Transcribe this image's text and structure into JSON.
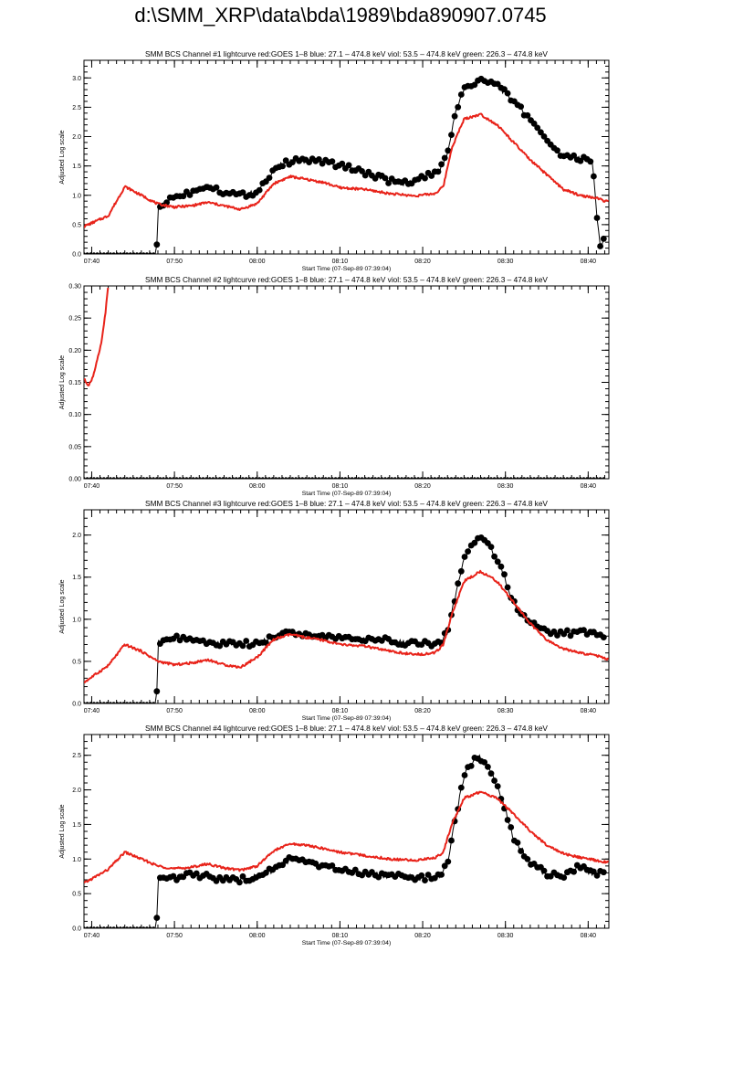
{
  "page": {
    "title": "d:\\SMM_XRP\\data\\bda\\1989\\bda890907.0745"
  },
  "colors": {
    "goes": "#e8231a",
    "bcs": "#000000",
    "axis": "#000000"
  },
  "chart_data": [
    {
      "type": "scatter",
      "title": "SMM BCS Channel #1 lightcurve  red:GOES 1–8  blue: 27.1 – 474.8 keV  viol: 53.5 – 474.8 keV  green: 226.3 – 474.8 keV",
      "xlabel": "Start Time (07-Sep-89 07:39:04)",
      "ylabel": "Adjusted Log scale",
      "xlim": [
        "07:39:04",
        "08:42:30"
      ],
      "ylim": [
        0,
        3.3
      ],
      "x_ticks": [
        "07:40",
        "07:50",
        "08:00",
        "08:10",
        "08:20",
        "08:30",
        "08:40"
      ],
      "y_ticks": [
        "0.0",
        "0.5",
        "1.0",
        "1.5",
        "2.0",
        "2.5",
        "3.0"
      ],
      "series": [
        {
          "name": "GOES 1–8",
          "style": "line",
          "x": [
            "07:39:04",
            "07:42:00",
            "07:44:00",
            "07:46:00",
            "07:48:00",
            "07:50:00",
            "07:52:00",
            "07:54:00",
            "07:56:00",
            "07:58:00",
            "08:00:00",
            "08:02:00",
            "08:04:00",
            "08:06:00",
            "08:08:00",
            "08:10:00",
            "08:13:00",
            "08:16:00",
            "08:19:00",
            "08:21:30",
            "08:22:30",
            "08:23:30",
            "08:25:00",
            "08:27:00",
            "08:29:00",
            "08:31:00",
            "08:33:00",
            "08:35:00",
            "08:37:00",
            "08:39:00",
            "08:41:00",
            "08:42:30"
          ],
          "y": [
            0.47,
            0.65,
            1.15,
            1.0,
            0.85,
            0.8,
            0.82,
            0.88,
            0.82,
            0.76,
            0.86,
            1.2,
            1.32,
            1.27,
            1.22,
            1.13,
            1.1,
            1.03,
            0.99,
            1.03,
            1.15,
            1.8,
            2.3,
            2.38,
            2.2,
            1.9,
            1.6,
            1.35,
            1.1,
            1.0,
            0.95,
            0.88
          ]
        },
        {
          "name": "BCS",
          "style": "points",
          "x": [
            "07:39:04",
            "07:47:50",
            "07:48:00",
            "07:50:00",
            "07:52:00",
            "07:54:00",
            "07:56:00",
            "07:58:00",
            "08:00:00",
            "08:02:00",
            "08:04:00",
            "08:06:00",
            "08:08:00",
            "08:10:00",
            "08:12:00",
            "08:14:00",
            "08:16:00",
            "08:18:00",
            "08:20:00",
            "08:22:00",
            "08:23:00",
            "08:24:00",
            "08:25:00",
            "08:27:00",
            "08:29:00",
            "08:31:00",
            "08:33:00",
            "08:35:00",
            "08:37:00",
            "08:39:00",
            "08:40:30",
            "08:41:00",
            "08:41:30",
            "08:42:00"
          ],
          "y": [
            0.0,
            0.0,
            0.8,
            0.98,
            1.05,
            1.18,
            1.05,
            1.0,
            1.05,
            1.45,
            1.58,
            1.6,
            1.58,
            1.5,
            1.45,
            1.33,
            1.25,
            1.2,
            1.3,
            1.4,
            1.7,
            2.45,
            2.8,
            2.97,
            2.88,
            2.6,
            2.3,
            1.95,
            1.65,
            1.62,
            1.6,
            0.7,
            0.1,
            0.3
          ]
        }
      ]
    },
    {
      "type": "scatter",
      "title": "SMM BCS Channel #2 lightcurve  red:GOES 1–8  blue: 27.1 – 474.8 keV  viol: 53.5 – 474.8 keV  green: 226.3 – 474.8 keV",
      "xlabel": "Start Time (07-Sep-89 07:39:04)",
      "ylabel": "Adjusted Log scale",
      "xlim": [
        "07:39:04",
        "08:42:30"
      ],
      "ylim": [
        0,
        0.3
      ],
      "x_ticks": [
        "07:40",
        "07:50",
        "08:00",
        "08:10",
        "08:20",
        "08:30",
        "08:40"
      ],
      "y_ticks": [
        "0.00",
        "0.05",
        "0.10",
        "0.15",
        "0.20",
        "0.25",
        "0.30"
      ],
      "series": [
        {
          "name": "GOES 1–8",
          "style": "line",
          "x": [
            "07:39:04",
            "07:39:40",
            "07:40:10",
            "07:40:40",
            "07:41:00",
            "07:41:20",
            "07:41:40",
            "07:42:00"
          ],
          "y": [
            0.155,
            0.145,
            0.16,
            0.185,
            0.2,
            0.225,
            0.26,
            0.3
          ]
        },
        {
          "name": "BCS",
          "style": "points",
          "x": [
            "07:39:04",
            "08:42:00"
          ],
          "y": [
            0.0,
            0.0
          ]
        }
      ]
    },
    {
      "type": "scatter",
      "title": "SMM BCS Channel #3 lightcurve  red:GOES 1–8  blue: 27.1 – 474.8 keV  viol: 53.5 – 474.8 keV  green: 226.3 – 474.8 keV",
      "xlabel": "Start Time (07-Sep-89 07:39:04)",
      "ylabel": "Adjusted Log scale",
      "xlim": [
        "07:39:04",
        "08:42:30"
      ],
      "ylim": [
        0,
        2.3
      ],
      "x_ticks": [
        "07:40",
        "07:50",
        "08:00",
        "08:10",
        "08:20",
        "08:30",
        "08:40"
      ],
      "y_ticks": [
        "0.0",
        "0.5",
        "1.0",
        "1.5",
        "2.0"
      ],
      "series": [
        {
          "name": "GOES 1–8",
          "style": "line",
          "x": [
            "07:39:04",
            "07:42:00",
            "07:44:00",
            "07:46:00",
            "07:48:00",
            "07:50:00",
            "07:52:00",
            "07:54:00",
            "07:56:00",
            "07:58:00",
            "08:00:00",
            "08:02:00",
            "08:04:00",
            "08:06:00",
            "08:08:00",
            "08:10:00",
            "08:13:00",
            "08:16:00",
            "08:19:00",
            "08:21:30",
            "08:22:30",
            "08:23:30",
            "08:25:00",
            "08:27:00",
            "08:29:00",
            "08:31:00",
            "08:33:00",
            "08:35:00",
            "08:37:00",
            "08:39:00",
            "08:41:00",
            "08:42:30"
          ],
          "y": [
            0.25,
            0.45,
            0.7,
            0.62,
            0.5,
            0.46,
            0.48,
            0.52,
            0.46,
            0.43,
            0.55,
            0.76,
            0.82,
            0.78,
            0.75,
            0.7,
            0.68,
            0.62,
            0.58,
            0.6,
            0.7,
            1.05,
            1.45,
            1.57,
            1.45,
            1.2,
            0.95,
            0.75,
            0.65,
            0.6,
            0.57,
            0.52
          ]
        },
        {
          "name": "BCS",
          "style": "points",
          "x": [
            "07:39:04",
            "07:47:50",
            "07:48:00",
            "07:50:00",
            "07:52:00",
            "07:54:00",
            "07:56:00",
            "07:58:00",
            "08:00:00",
            "08:02:00",
            "08:04:00",
            "08:06:00",
            "08:08:00",
            "08:10:00",
            "08:12:00",
            "08:14:00",
            "08:16:00",
            "08:18:00",
            "08:20:00",
            "08:22:00",
            "08:23:00",
            "08:24:00",
            "08:25:00",
            "08:26:30",
            "08:28:00",
            "08:29:30",
            "08:31:00",
            "08:33:00",
            "08:35:00",
            "08:37:00",
            "08:39:00",
            "08:40:30",
            "08:42:00"
          ],
          "y": [
            0.0,
            0.0,
            0.72,
            0.78,
            0.75,
            0.72,
            0.7,
            0.72,
            0.7,
            0.8,
            0.85,
            0.82,
            0.8,
            0.78,
            0.77,
            0.76,
            0.75,
            0.72,
            0.72,
            0.7,
            0.85,
            1.3,
            1.7,
            1.98,
            1.9,
            1.6,
            1.2,
            0.95,
            0.85,
            0.83,
            0.85,
            0.82,
            0.8
          ]
        }
      ]
    },
    {
      "type": "scatter",
      "title": "SMM BCS Channel #4 lightcurve  red:GOES 1–8  blue: 27.1 – 474.8 keV  viol: 53.5 – 474.8 keV  green: 226.3 – 474.8 keV",
      "xlabel": "Start Time (07-Sep-89 07:39:04)",
      "ylabel": "Adjusted Log scale",
      "xlim": [
        "07:39:04",
        "08:42:30"
      ],
      "ylim": [
        0,
        2.8
      ],
      "x_ticks": [
        "07:40",
        "07:50",
        "08:00",
        "08:10",
        "08:20",
        "08:30",
        "08:40"
      ],
      "y_ticks": [
        "0.0",
        "0.5",
        "1.0",
        "1.5",
        "2.0",
        "2.5"
      ],
      "series": [
        {
          "name": "GOES 1–8",
          "style": "line",
          "x": [
            "07:39:04",
            "07:42:00",
            "07:44:00",
            "07:46:00",
            "07:48:00",
            "07:50:00",
            "07:52:00",
            "07:54:00",
            "07:56:00",
            "07:58:00",
            "08:00:00",
            "08:02:00",
            "08:04:00",
            "08:06:00",
            "08:08:00",
            "08:10:00",
            "08:13:00",
            "08:16:00",
            "08:19:00",
            "08:21:30",
            "08:22:30",
            "08:23:30",
            "08:25:00",
            "08:27:00",
            "08:29:00",
            "08:31:00",
            "08:33:00",
            "08:35:00",
            "08:37:00",
            "08:39:00",
            "08:41:00",
            "08:42:30"
          ],
          "y": [
            0.65,
            0.85,
            1.1,
            1.0,
            0.9,
            0.86,
            0.88,
            0.93,
            0.87,
            0.84,
            0.9,
            1.12,
            1.22,
            1.2,
            1.15,
            1.1,
            1.05,
            1.0,
            0.98,
            1.02,
            1.1,
            1.5,
            1.88,
            1.97,
            1.88,
            1.65,
            1.4,
            1.2,
            1.08,
            1.02,
            0.98,
            0.95
          ]
        },
        {
          "name": "BCS",
          "style": "points",
          "x": [
            "07:39:04",
            "07:47:50",
            "07:48:00",
            "07:50:00",
            "07:52:00",
            "07:54:00",
            "07:56:00",
            "07:58:00",
            "08:00:00",
            "08:02:00",
            "08:04:00",
            "08:06:00",
            "08:08:00",
            "08:10:00",
            "08:12:00",
            "08:14:00",
            "08:16:00",
            "08:18:00",
            "08:20:00",
            "08:22:00",
            "08:23:00",
            "08:24:00",
            "08:25:00",
            "08:26:30",
            "08:28:00",
            "08:29:30",
            "08:31:00",
            "08:33:00",
            "08:35:00",
            "08:37:00",
            "08:39:00",
            "08:40:30",
            "08:42:00"
          ],
          "y": [
            0.0,
            0.0,
            0.75,
            0.72,
            0.78,
            0.75,
            0.7,
            0.7,
            0.75,
            0.85,
            1.0,
            0.95,
            0.88,
            0.85,
            0.8,
            0.78,
            0.76,
            0.75,
            0.73,
            0.75,
            0.95,
            1.6,
            2.2,
            2.5,
            2.35,
            1.9,
            1.3,
            0.95,
            0.78,
            0.75,
            0.9,
            0.78,
            0.82
          ]
        }
      ]
    }
  ]
}
